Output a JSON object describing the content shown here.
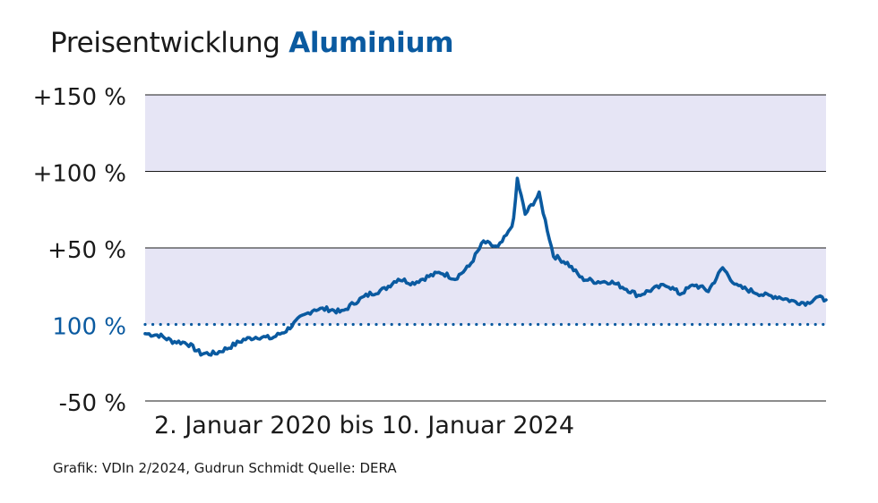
{
  "title_prefix": "Preisentwicklung",
  "title_accent": "Aluminium",
  "x_range_label": "2. Januar 2020 bis 10. Januar 2024",
  "source": "Grafik: VDIn 2/2024, Gudrun Schmidt Quelle: DERA",
  "colors": {
    "line": "#0a5aa0",
    "band": "#e6e5f5",
    "accent": "#0a5aa0",
    "grid": "#1a1a1a"
  },
  "chart_data": {
    "type": "line",
    "title": "Preisentwicklung Aluminium",
    "xlabel": "2. Januar 2020 bis 10. Januar 2024",
    "ylabel": "",
    "x_start": "2020-01-02",
    "x_end": "2024-01-10",
    "ylim": [
      -50,
      150
    ],
    "y_ticks": [
      {
        "value": 150,
        "label": "+150 %"
      },
      {
        "value": 100,
        "label": "+100 %"
      },
      {
        "value": 50,
        "label": "+50 %"
      },
      {
        "value": 0,
        "label": "100 %"
      },
      {
        "value": -50,
        "label": "-50 %"
      }
    ],
    "baseline": {
      "value": 0,
      "style": "dotted"
    },
    "shaded_bands": [
      [
        0,
        50
      ],
      [
        100,
        150
      ]
    ],
    "grid": true,
    "series": [
      {
        "x": [
          "2020-01-02",
          "2020-02-01",
          "2020-03-01",
          "2020-04-01",
          "2020-05-01",
          "2020-06-01",
          "2020-07-01",
          "2020-08-01",
          "2020-09-01",
          "2020-10-01",
          "2020-11-01",
          "2020-12-01",
          "2021-01-01",
          "2021-02-01",
          "2021-03-01",
          "2021-04-01",
          "2021-05-01",
          "2021-06-01",
          "2021-07-01",
          "2021-08-01",
          "2021-09-01",
          "2021-10-01",
          "2021-11-01",
          "2021-12-01",
          "2022-01-01",
          "2022-02-01",
          "2022-02-24",
          "2022-03-07",
          "2022-03-15",
          "2022-04-01",
          "2022-05-01",
          "2022-06-01",
          "2022-07-01",
          "2022-08-01",
          "2022-09-01",
          "2022-10-01",
          "2022-11-01",
          "2022-12-01",
          "2023-01-01",
          "2023-02-01",
          "2023-03-01",
          "2023-04-01",
          "2023-05-01",
          "2023-06-01",
          "2023-07-01",
          "2023-08-01",
          "2023-09-01",
          "2023-10-01",
          "2023-11-01",
          "2023-12-01",
          "2023-12-20",
          "2024-01-10"
        ],
        "values": [
          -6,
          -7,
          -11,
          -12,
          -19,
          -19,
          -15,
          -10,
          -8,
          -9,
          -4,
          4,
          10,
          10,
          8,
          15,
          20,
          23,
          30,
          27,
          31,
          34,
          30,
          38,
          54,
          50,
          60,
          68,
          95,
          72,
          85,
          45,
          40,
          30,
          28,
          28,
          24,
          19,
          23,
          26,
          20,
          26,
          22,
          37,
          25,
          22,
          19,
          18,
          15,
          14,
          18,
          16
        ]
      }
    ]
  }
}
